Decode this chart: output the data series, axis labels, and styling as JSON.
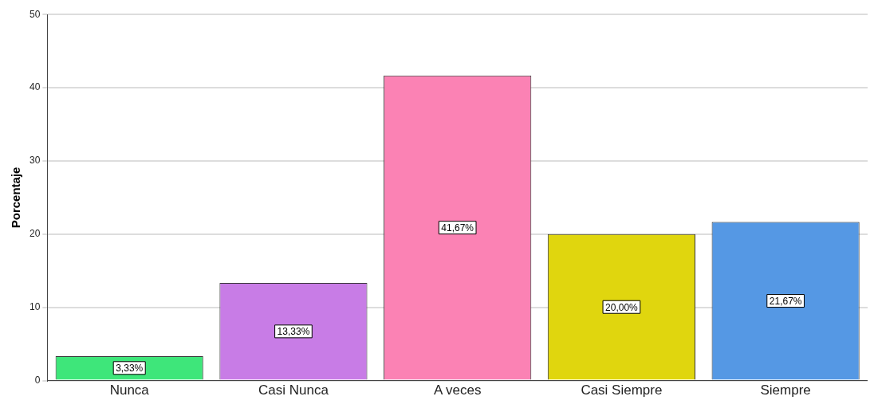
{
  "chart_data": {
    "type": "bar",
    "ylabel": "Porcentaje",
    "categories": [
      "Nunca",
      "Casi Nunca",
      "A veces",
      "Casi Siempre",
      "Siempre"
    ],
    "values": [
      3.33,
      13.33,
      41.67,
      20,
      21.67
    ],
    "colors": [
      "#3ee67a",
      "#c87ce6",
      "#fb82b4",
      "#e0d60e",
      "#5598e4"
    ],
    "value_labels": [
      "3,33%",
      "13,33%",
      "41,67%",
      "20,00%",
      "21,67%"
    ],
    "ylim": [
      0,
      50
    ],
    "yticks": [
      0,
      10,
      20,
      30,
      40,
      50
    ],
    "grid": "y",
    "legend": false
  }
}
